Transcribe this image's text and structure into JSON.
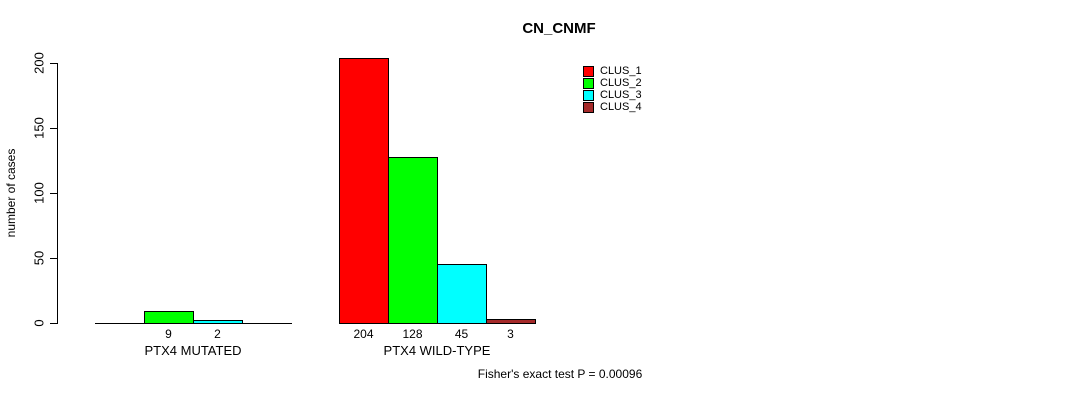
{
  "chart_data": {
    "type": "bar",
    "title": "CN_CNMF",
    "ylabel": "number of cases",
    "xlabel": "",
    "ylim": [
      0,
      200
    ],
    "yticks": [
      0,
      50,
      100,
      150,
      200
    ],
    "grid": false,
    "legend_position": "top-right-of-plot",
    "categories": [
      "PTX4 MUTATED",
      "PTX4 WILD-TYPE"
    ],
    "series": [
      {
        "name": "CLUS_1",
        "color": "#FF0000",
        "values": [
          0,
          204
        ]
      },
      {
        "name": "CLUS_2",
        "color": "#00FF00",
        "values": [
          9,
          128
        ]
      },
      {
        "name": "CLUS_3",
        "color": "#00FFFF",
        "values": [
          2,
          45
        ]
      },
      {
        "name": "CLUS_4",
        "color": "#A52A2A",
        "values": [
          0,
          3
        ]
      }
    ],
    "bar_value_labels_shown": [
      [
        "9",
        "2"
      ],
      [
        "204",
        "128",
        "45",
        "3"
      ]
    ],
    "annotation": "Fisher's exact test P = 0.00096"
  }
}
